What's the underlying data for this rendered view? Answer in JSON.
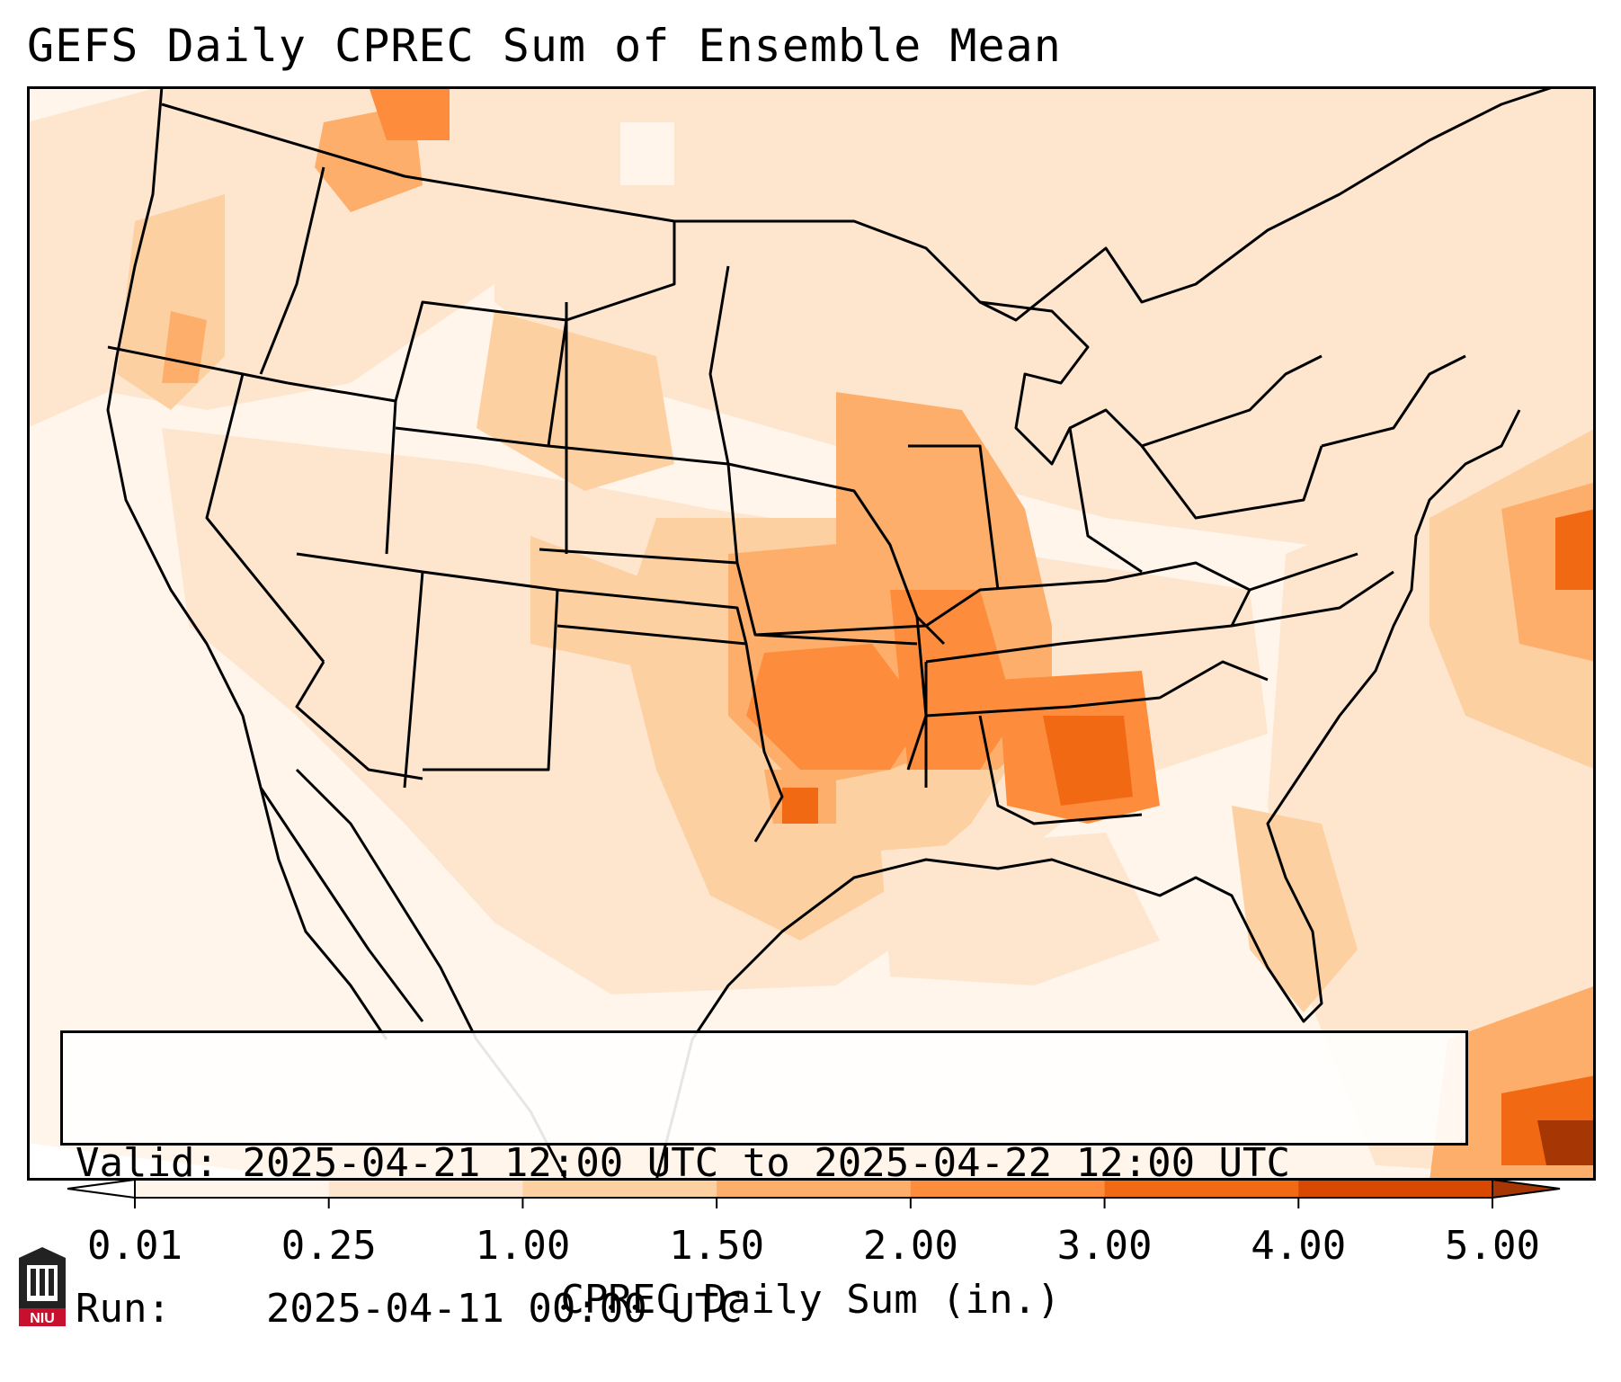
{
  "title": "GEFS Daily CPREC Sum of Ensemble Mean",
  "info": {
    "valid_label": "Valid:",
    "valid_value": "2025-04-21 12:00 UTC to 2025-04-22 12:00 UTC",
    "run_label": "Run:",
    "run_value": "2025-04-11 00:00 UTC"
  },
  "colorbar": {
    "ticks": [
      "0.01",
      "0.25",
      "1.00",
      "1.50",
      "2.00",
      "3.00",
      "4.00",
      "5.00"
    ],
    "colors": [
      "#fff5eb",
      "#fee6ce",
      "#fdd0a2",
      "#fdae6b",
      "#fd8d3c",
      "#f16913",
      "#d94801"
    ],
    "extend_min_color": "#ffffff",
    "extend_max_color": "#a63603",
    "label": "CPREC Daily Sum (in.)"
  },
  "logo": {
    "text": "NIU",
    "color": "#c8102e"
  }
}
